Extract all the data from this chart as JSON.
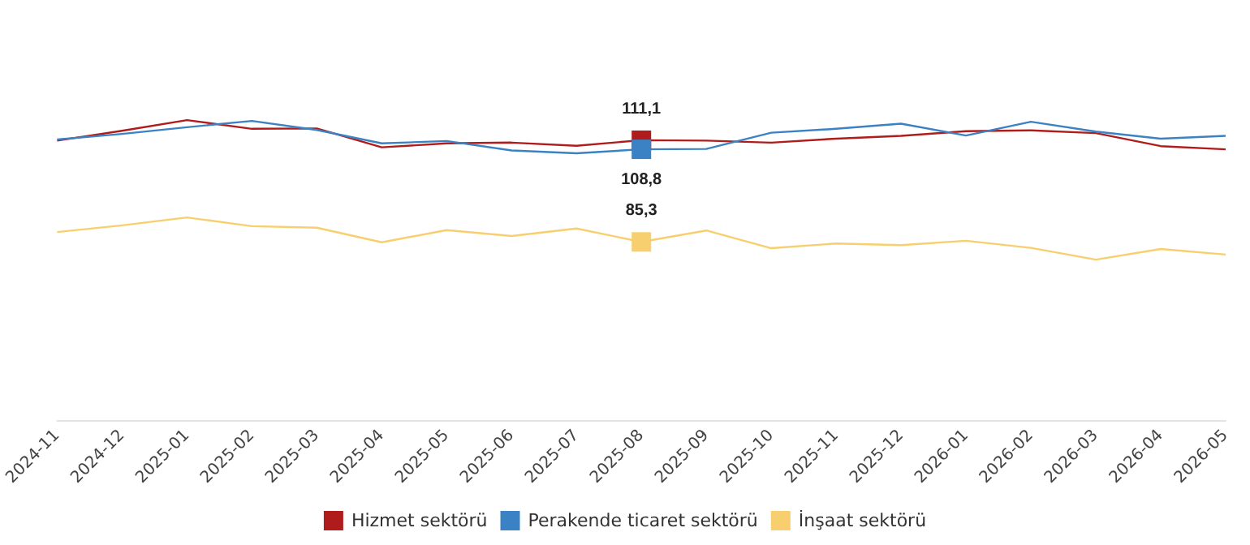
{
  "chart_data": {
    "type": "line",
    "categories": [
      "2024-11",
      "2024-12",
      "2025-01",
      "2025-02",
      "2025-03",
      "2025-04",
      "2025-05",
      "2025-06",
      "2025-07",
      "2025-08",
      "2025-09",
      "2025-10",
      "2025-11",
      "2025-12",
      "2026-01",
      "2026-02",
      "2026-03",
      "2026-04",
      "2026-05"
    ],
    "tick_labels": "x",
    "grid": false,
    "legend": "bottom",
    "series": [
      {
        "name": "Hizmet sektörü",
        "color": "#b01c1c",
        "values": [
          111.0,
          113.5,
          116.2,
          114.0,
          114.1,
          109.3,
          110.3,
          110.5,
          109.7,
          111.1,
          111.0,
          110.5,
          111.5,
          112.2,
          113.4,
          113.6,
          112.9,
          109.6,
          108.8
        ],
        "value_labels": [
          null,
          null,
          null,
          null,
          null,
          null,
          null,
          null,
          null,
          "111,1",
          null,
          null,
          null,
          null,
          null,
          null,
          null,
          null,
          null
        ]
      },
      {
        "name": "Perakende ticaret sektörü",
        "color": "#3a82c4",
        "values": [
          111.3,
          112.7,
          114.4,
          116.0,
          113.7,
          110.3,
          110.9,
          108.5,
          107.8,
          108.8,
          108.9,
          113.0,
          114.0,
          115.3,
          112.3,
          115.8,
          113.3,
          111.5,
          112.2
        ],
        "value_labels": [
          null,
          null,
          null,
          null,
          null,
          null,
          null,
          null,
          null,
          "108,8",
          null,
          null,
          null,
          null,
          null,
          null,
          null,
          null,
          null
        ]
      },
      {
        "name": "İnşaat sektörü",
        "color": "#f7cf6e",
        "values": [
          87.8,
          89.5,
          91.5,
          89.3,
          88.9,
          85.2,
          88.3,
          86.8,
          88.7,
          85.3,
          88.2,
          83.7,
          84.9,
          84.5,
          85.6,
          83.8,
          80.8,
          83.5,
          82.1
        ],
        "value_labels": [
          null,
          null,
          null,
          null,
          null,
          null,
          null,
          null,
          null,
          "85,3",
          null,
          null,
          null,
          null,
          null,
          null,
          null,
          null,
          null
        ]
      }
    ]
  }
}
